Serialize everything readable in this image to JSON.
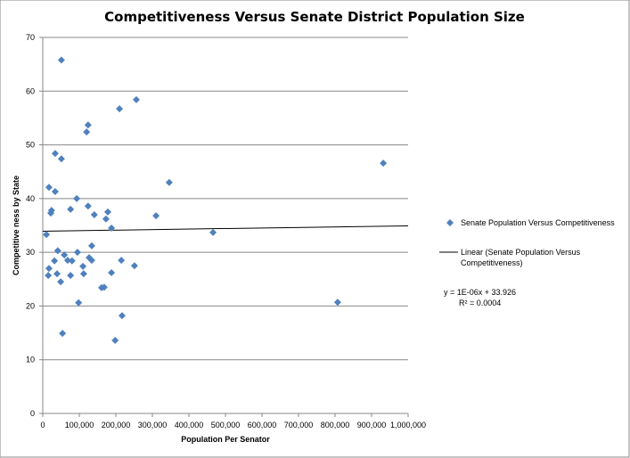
{
  "chart_data": {
    "type": "scatter",
    "title": "Competitiveness Versus Senate District Population Size",
    "xlabel": "Population  Per Senator",
    "ylabel": "Competitive ness   by State",
    "xlim": [
      0,
      1000000
    ],
    "ylim": [
      0,
      70
    ],
    "x_ticks": [
      "0",
      "100,000",
      "200,000",
      "300,000",
      "400,000",
      "500,000",
      "600,000",
      "700,000",
      "800,000",
      "900,000",
      "1,000,000"
    ],
    "y_ticks": [
      "0",
      "10",
      "20",
      "30",
      "40",
      "50",
      "60",
      "70"
    ],
    "grid": "horizontal",
    "legend_position": "right",
    "series": [
      {
        "name": "Senate Population Versus Competitiveness",
        "color": "#4F81BD",
        "marker": "diamond",
        "points": [
          [
            51000,
            65.8
          ],
          [
            256000,
            58.4
          ],
          [
            210000,
            56.7
          ],
          [
            124000,
            53.7
          ],
          [
            120000,
            52.4
          ],
          [
            34000,
            48.4
          ],
          [
            51000,
            47.4
          ],
          [
            346000,
            43.0
          ],
          [
            17000,
            42.1
          ],
          [
            34000,
            41.3
          ],
          [
            93000,
            40.0
          ],
          [
            124000,
            38.6
          ],
          [
            178000,
            37.5
          ],
          [
            22000,
            37.3
          ],
          [
            24000,
            37.8
          ],
          [
            141000,
            37.0
          ],
          [
            76000,
            38.0
          ],
          [
            173000,
            36.2
          ],
          [
            310000,
            36.8
          ],
          [
            188000,
            34.5
          ],
          [
            466000,
            33.7
          ],
          [
            10000,
            33.3
          ],
          [
            134000,
            31.2
          ],
          [
            41000,
            30.3
          ],
          [
            95000,
            30.0
          ],
          [
            59000,
            29.5
          ],
          [
            68000,
            28.5
          ],
          [
            80000,
            28.4
          ],
          [
            127000,
            29.0
          ],
          [
            134000,
            28.5
          ],
          [
            32000,
            28.4
          ],
          [
            215000,
            28.5
          ],
          [
            17000,
            27.0
          ],
          [
            110000,
            27.4
          ],
          [
            251000,
            27.5
          ],
          [
            15000,
            25.7
          ],
          [
            39000,
            26.0
          ],
          [
            76000,
            25.7
          ],
          [
            112000,
            26.0
          ],
          [
            188000,
            26.2
          ],
          [
            49000,
            24.5
          ],
          [
            161000,
            23.4
          ],
          [
            168000,
            23.5
          ],
          [
            98000,
            20.6
          ],
          [
            217000,
            18.2
          ],
          [
            54000,
            14.9
          ],
          [
            198000,
            13.6
          ],
          [
            807000,
            20.7
          ],
          [
            932000,
            46.6
          ]
        ]
      }
    ],
    "trendline": {
      "name": "Linear (Senate Population Versus Competitiveness)",
      "name_line1": "Linear (Senate Population Versus",
      "name_line2": "Competitiveness)",
      "color": "#000000",
      "slope": 1e-06,
      "intercept": 33.926,
      "equation": "y = 1E-06x + 33.926",
      "r2": "R² = 0.0004"
    }
  }
}
